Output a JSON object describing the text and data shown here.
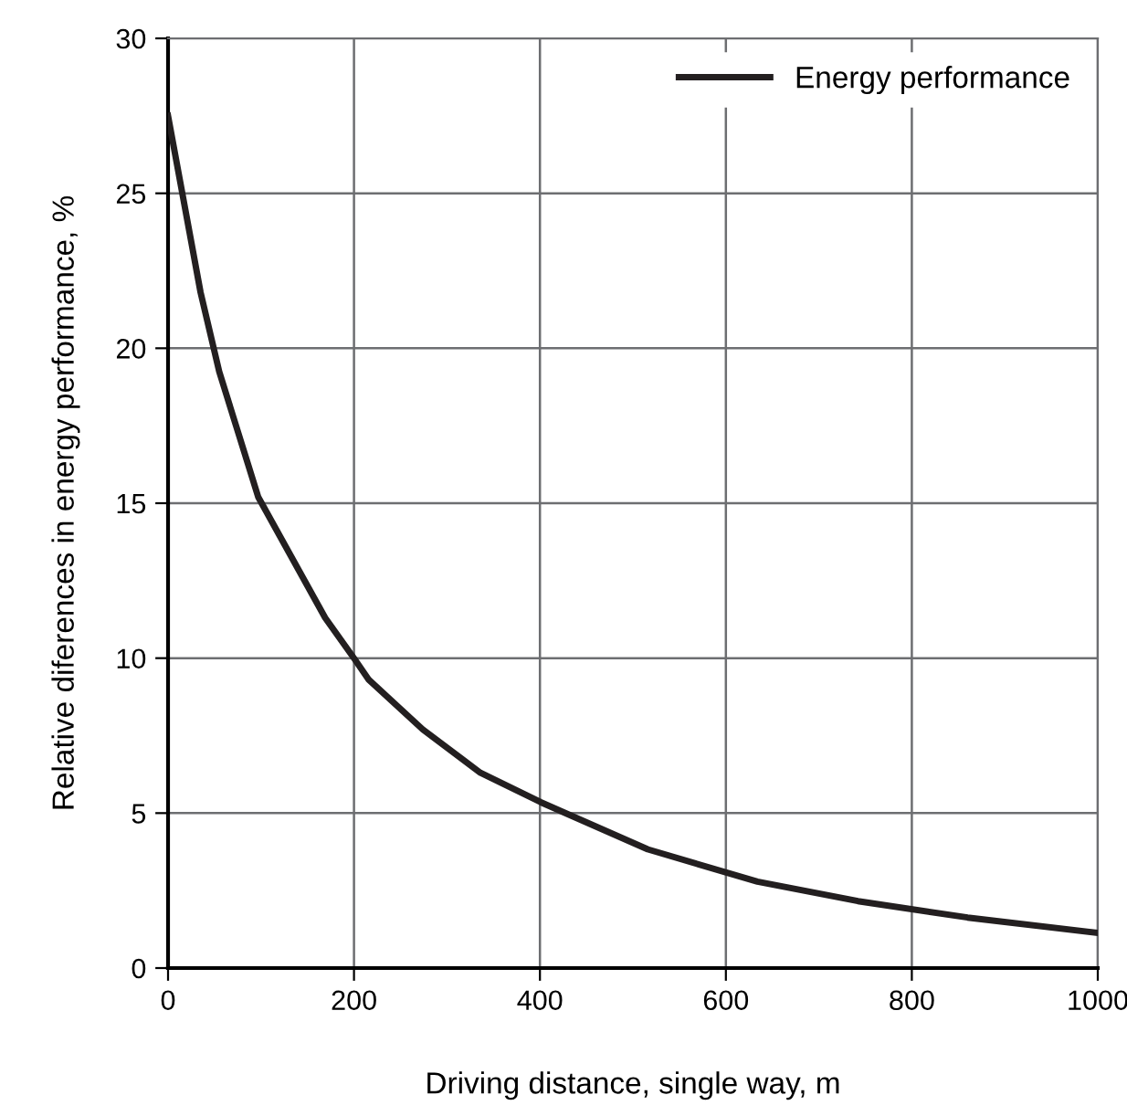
{
  "chart_data": {
    "type": "line",
    "xlabel": "Driving distance, single way, m",
    "ylabel": "Relative diferences in energy performance, %",
    "x": [
      0,
      35,
      55,
      97,
      169,
      200,
      216,
      274,
      336,
      401,
      516,
      634,
      742,
      860,
      998
    ],
    "series": [
      {
        "name": "Energy performance",
        "color": "#231f20",
        "values": [
          27.5,
          21.8,
          19.25,
          15.2,
          11.3,
          10.0,
          9.3,
          7.7,
          6.3,
          5.35,
          3.83,
          2.79,
          2.16,
          1.63,
          1.14
        ]
      }
    ],
    "xlim": [
      0,
      1000
    ],
    "xticks": [
      0,
      200,
      400,
      600,
      800,
      1000
    ],
    "ylim": [
      0,
      30
    ],
    "yticks": [
      0,
      5,
      10,
      15,
      20,
      25,
      30
    ],
    "grid": true,
    "legend": "top right",
    "line_style": "solid"
  }
}
